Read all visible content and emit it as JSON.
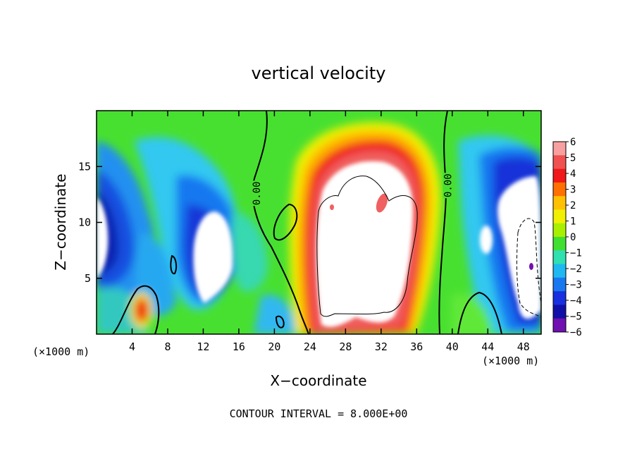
{
  "chart_data": {
    "type": "heatmap",
    "title": "vertical velocity",
    "xlabel": "X−coordinate",
    "ylabel": "Z−coordinate",
    "x_unit_left": "(×1000 m)",
    "x_unit_right": "(×1000 m)",
    "footer": "CONTOUR INTERVAL = 8.000E+00",
    "xlim": [
      0,
      50
    ],
    "ylim": [
      0,
      20
    ],
    "x_ticks": [
      4,
      8,
      12,
      16,
      20,
      24,
      28,
      32,
      36,
      40,
      44,
      48
    ],
    "y_ticks": [
      5,
      10,
      15
    ],
    "x_tick_labels": [
      "4",
      "8",
      "12",
      "16",
      "20",
      "24",
      "28",
      "32",
      "36",
      "40",
      "44",
      "48"
    ],
    "y_tick_labels": [
      "5",
      "10",
      "15"
    ],
    "colorbar": {
      "levels": [
        6,
        5,
        4,
        3,
        2,
        1,
        0,
        -1,
        -2,
        -3,
        -4,
        -5,
        -6
      ],
      "labels": [
        "6",
        "5",
        "4",
        "3",
        "2",
        "1",
        "0",
        "−1",
        "−2",
        "−3",
        "−4",
        "−5",
        "−6"
      ],
      "colors": [
        "#f8a0a0",
        "#f05050",
        "#f01818",
        "#ff7000",
        "#ffc000",
        "#f0f000",
        "#a8f000",
        "#40e030",
        "#30e0b0",
        "#20b8f0",
        "#1878f0",
        "#1830e0",
        "#1010a8",
        "#7010b0"
      ]
    },
    "contour_labels": [
      {
        "text": "0.00",
        "x": 18.0,
        "y": 12.6
      },
      {
        "text": "0.00",
        "x": 39.5,
        "y": 13.3
      }
    ],
    "grid": false,
    "legend_position": "right (colorbar)"
  }
}
